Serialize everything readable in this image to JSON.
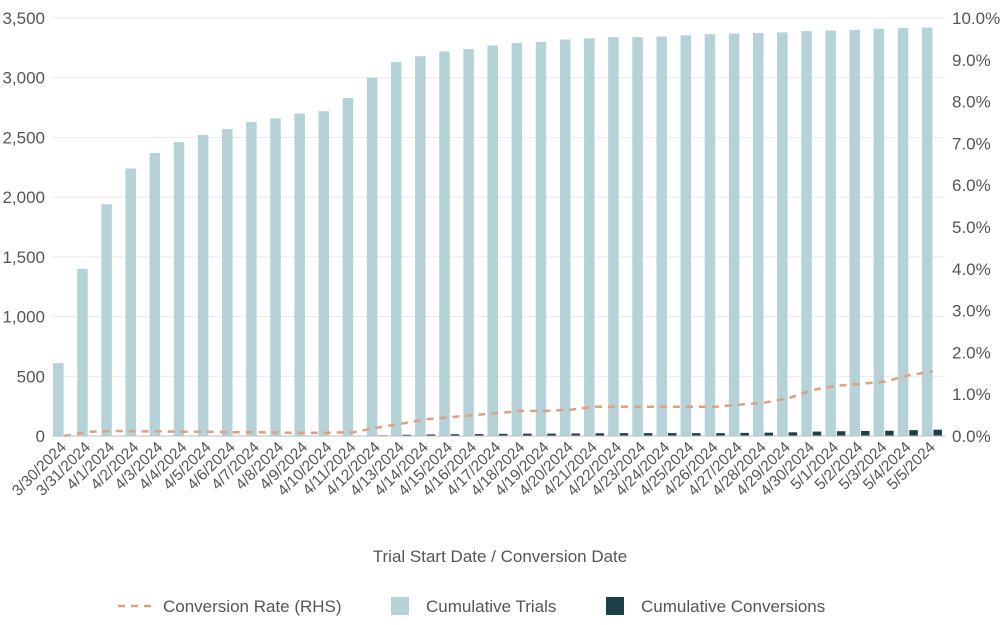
{
  "chart_data": {
    "type": "bar",
    "title": "",
    "xlabel": "Trial Start Date / Conversion Date",
    "ylabel": "",
    "y2label": "",
    "ylim": [
      0,
      3500
    ],
    "y2lim": [
      0,
      0.1
    ],
    "yticks": [
      "0",
      "500",
      "1,000",
      "1,500",
      "2,000",
      "2,500",
      "3,000",
      "3,500"
    ],
    "y2ticks": [
      "0.0%",
      "1.0%",
      "2.0%",
      "3.0%",
      "4.0%",
      "5.0%",
      "6.0%",
      "7.0%",
      "8.0%",
      "9.0%",
      "10.0%"
    ],
    "grid": true,
    "legend_position": "bottom",
    "categories": [
      "3/30/2024",
      "3/31/2024",
      "4/1/2024",
      "4/2/2024",
      "4/3/2024",
      "4/4/2024",
      "4/5/2024",
      "4/6/2024",
      "4/7/2024",
      "4/8/2024",
      "4/9/2024",
      "4/10/2024",
      "4/11/2024",
      "4/12/2024",
      "4/13/2024",
      "4/14/2024",
      "4/15/2024",
      "4/16/2024",
      "4/17/2024",
      "4/18/2024",
      "4/19/2024",
      "4/20/2024",
      "4/21/2024",
      "4/22/2024",
      "4/23/2024",
      "4/24/2024",
      "4/25/2024",
      "4/26/2024",
      "4/27/2024",
      "4/28/2024",
      "4/29/2024",
      "4/30/2024",
      "5/1/2024",
      "5/2/2024",
      "5/3/2024",
      "5/4/2024",
      "5/5/2024"
    ],
    "series": [
      {
        "name": "Conversion Rate (RHS)",
        "kind": "line",
        "axis": "right",
        "color": "#e0a07e",
        "values": [
          0.0,
          0.001,
          0.0012,
          0.0011,
          0.0011,
          0.001,
          0.001,
          0.0009,
          0.0009,
          0.0008,
          0.0008,
          0.0008,
          0.0009,
          0.002,
          0.003,
          0.004,
          0.0045,
          0.005,
          0.0055,
          0.006,
          0.006,
          0.0063,
          0.007,
          0.007,
          0.007,
          0.007,
          0.007,
          0.007,
          0.0075,
          0.008,
          0.009,
          0.011,
          0.012,
          0.0125,
          0.013,
          0.0145,
          0.0155
        ]
      },
      {
        "name": "Cumulative Trials",
        "kind": "bar",
        "axis": "left",
        "color": "#b5d2d9",
        "values": [
          610,
          1400,
          1940,
          2240,
          2370,
          2460,
          2520,
          2570,
          2630,
          2660,
          2700,
          2720,
          2830,
          3000,
          3130,
          3180,
          3220,
          3240,
          3270,
          3290,
          3300,
          3320,
          3330,
          3340,
          3340,
          3345,
          3355,
          3365,
          3370,
          3375,
          3380,
          3390,
          3395,
          3400,
          3410,
          3415,
          3420
        ]
      },
      {
        "name": "Cumulative Conversions",
        "kind": "bar",
        "axis": "left",
        "color": "#1f3f48",
        "values": [
          0,
          1,
          2,
          2,
          3,
          3,
          3,
          3,
          3,
          3,
          3,
          3,
          3,
          6,
          10,
          13,
          15,
          16,
          18,
          20,
          20,
          21,
          23,
          24,
          24,
          24,
          24,
          24,
          26,
          28,
          31,
          37,
          40,
          42,
          44,
          49,
          53
        ]
      }
    ]
  }
}
